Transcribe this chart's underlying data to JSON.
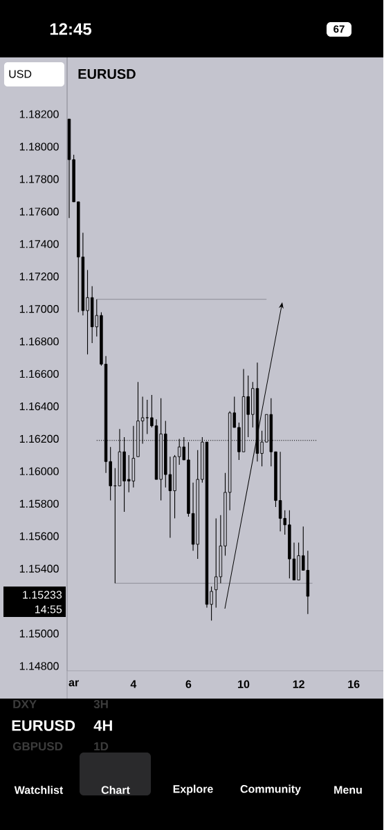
{
  "chart_data": {
    "type": "candlestick",
    "title": "EURUSD",
    "categories": [
      null,
      "ar",
      null,
      null,
      null,
      null,
      null,
      null,
      null,
      null,
      null,
      null,
      null,
      null,
      "4",
      null,
      null,
      null,
      null,
      null,
      null,
      null,
      null,
      null,
      null,
      null,
      "6",
      null,
      null,
      null,
      null,
      null,
      null,
      null,
      null,
      null,
      null,
      null,
      "10",
      null,
      null,
      null,
      null,
      null,
      null,
      null,
      null,
      null,
      null,
      null,
      "12",
      null,
      null,
      null,
      null,
      null,
      null,
      null,
      null,
      null,
      null,
      null,
      "16"
    ],
    "ohlc": [
      [
        1.1817,
        1.1817,
        1.1756,
        1.1792
      ],
      [
        1.1792,
        1.1795,
        1.1766,
        1.1766
      ],
      [
        1.1766,
        1.1766,
        1.1698,
        1.1732
      ],
      [
        1.1732,
        1.1747,
        1.1696,
        1.1699
      ],
      [
        1.1699,
        1.1724,
        1.1672,
        1.1707
      ],
      [
        1.1707,
        1.1714,
        1.1679,
        1.1689
      ],
      [
        1.1689,
        1.1706,
        1.1683,
        1.1696
      ],
      [
        1.1696,
        1.1698,
        1.1665,
        1.1666
      ],
      [
        1.1666,
        1.1671,
        1.1599,
        1.1606
      ],
      [
        1.1606,
        1.1615,
        1.1582,
        1.1591
      ],
      [
        1.1591,
        1.1602,
        1.1531,
        1.1591
      ],
      [
        1.1591,
        1.1626,
        1.1591,
        1.1612
      ],
      [
        1.1612,
        1.1621,
        1.1575,
        1.1594
      ],
      [
        1.1595,
        1.161,
        1.1587,
        1.1594
      ],
      [
        1.1594,
        1.1628,
        1.159,
        1.1608
      ],
      [
        1.1609,
        1.1655,
        1.1609,
        1.1631
      ],
      [
        1.1631,
        1.1646,
        1.1617,
        1.1633
      ],
      [
        1.1633,
        1.1644,
        1.1623,
        1.1633
      ],
      [
        1.1633,
        1.1647,
        1.1627,
        1.1628
      ],
      [
        1.1628,
        1.1632,
        1.1595,
        1.1595
      ],
      [
        1.1595,
        1.1645,
        1.1582,
        1.1623
      ],
      [
        1.1623,
        1.1631,
        1.159,
        1.1598
      ],
      [
        1.1598,
        1.1609,
        1.1559,
        1.1588
      ],
      [
        1.1588,
        1.161,
        1.1571,
        1.1609
      ],
      [
        1.1609,
        1.162,
        1.1604,
        1.1615
      ],
      [
        1.1615,
        1.1621,
        1.1607,
        1.1607
      ],
      [
        1.1607,
        1.1618,
        1.1572,
        1.1574
      ],
      [
        1.1574,
        1.1593,
        1.1551,
        1.1555
      ],
      [
        1.1555,
        1.1613,
        1.1546,
        1.1595
      ],
      [
        1.1595,
        1.1621,
        1.1593,
        1.1618
      ],
      [
        1.1618,
        1.1618,
        1.1516,
        1.1518
      ],
      [
        1.1518,
        1.1529,
        1.1508,
        1.1526
      ],
      [
        1.1527,
        1.1571,
        1.1516,
        1.1535
      ],
      [
        1.1535,
        1.1573,
        1.1531,
        1.1554
      ],
      [
        1.1554,
        1.1599,
        1.1548,
        1.1587
      ],
      [
        1.1587,
        1.1637,
        1.1576,
        1.1636
      ],
      [
        1.1636,
        1.1646,
        1.1627,
        1.1627
      ],
      [
        1.1627,
        1.163,
        1.1607,
        1.1612
      ],
      [
        1.1612,
        1.1663,
        1.1612,
        1.1646
      ],
      [
        1.1646,
        1.1659,
        1.1621,
        1.1635
      ],
      [
        1.1635,
        1.1655,
        1.1627,
        1.1651
      ],
      [
        1.1651,
        1.1667,
        1.1606,
        1.1611
      ],
      [
        1.1611,
        1.1625,
        1.1603,
        1.1618
      ],
      [
        1.1618,
        1.1635,
        1.1618,
        1.1635
      ],
      [
        1.1635,
        1.1645,
        1.1603,
        1.1612
      ],
      [
        1.1612,
        1.1612,
        1.1578,
        1.1582
      ],
      [
        1.1582,
        1.1612,
        1.1563,
        1.1571
      ],
      [
        1.1571,
        1.1576,
        1.1561,
        1.1567
      ],
      [
        1.1567,
        1.1576,
        1.1534,
        1.1546
      ],
      [
        1.1546,
        1.1556,
        1.1533,
        1.1533
      ],
      [
        1.1533,
        1.1556,
        1.1533,
        1.1548
      ],
      [
        1.1548,
        1.1566,
        1.1539,
        1.1539
      ],
      [
        1.1539,
        1.1551,
        1.1512,
        1.1523
      ],
      null,
      null,
      null,
      null,
      null,
      null,
      null,
      null,
      null,
      null
    ],
    "series": [
      {
        "type": "line",
        "values": [
          null,
          null,
          null,
          null,
          null,
          null,
          1.1706,
          1.1706,
          1.1706,
          1.1706,
          1.1706,
          1.1706,
          1.1706,
          1.1706,
          1.1706,
          1.1706,
          1.1706,
          1.1706,
          1.1706,
          1.1706,
          1.1706,
          1.1706,
          1.1706,
          1.1706,
          1.1706,
          1.1706,
          1.1706,
          1.1706,
          1.1706,
          1.1706,
          1.1706,
          1.1706,
          1.1706,
          1.1706,
          1.1706,
          1.1706,
          1.1706,
          1.1706,
          1.1706,
          1.1706,
          1.1706,
          1.1706,
          1.1706,
          1.1706,
          null,
          null,
          null,
          null,
          null,
          null,
          null,
          null,
          null,
          null,
          null,
          null,
          null,
          null,
          null,
          null,
          null,
          null,
          null
        ],
        "color": "#8c8c96",
        "line_style": "solid"
      },
      {
        "type": "line",
        "values": [
          null,
          null,
          null,
          null,
          null,
          null,
          1.1619,
          1.1619,
          1.1619,
          1.1619,
          1.1619,
          1.1619,
          1.1619,
          1.1619,
          1.1619,
          1.1619,
          1.1619,
          1.1619,
          1.1619,
          1.1619,
          1.1619,
          1.1619,
          1.1619,
          1.1619,
          1.1619,
          1.1619,
          1.1619,
          1.1619,
          1.1619,
          1.1619,
          1.1619,
          1.1619,
          1.1619,
          1.1619,
          1.1619,
          1.1619,
          1.1619,
          1.1619,
          1.1619,
          1.1619,
          1.1619,
          1.1619,
          1.1619,
          1.1619,
          1.1619,
          1.1619,
          1.1619,
          1.1619,
          1.1619,
          1.1619,
          1.1619,
          1.1619,
          1.1619,
          1.1619,
          1.1619,
          null,
          null,
          null,
          null,
          null,
          null,
          null,
          null
        ],
        "color": "#000000",
        "line_style": "dotted"
      },
      {
        "type": "line",
        "values": [
          null,
          null,
          null,
          null,
          null,
          null,
          null,
          null,
          null,
          null,
          1.1531,
          1.1531,
          1.1531,
          1.1531,
          1.1531,
          1.1531,
          1.1531,
          1.1531,
          1.1531,
          1.1531,
          1.1531,
          1.1531,
          1.1531,
          1.1531,
          1.1531,
          1.1531,
          1.1531,
          1.1531,
          1.1531,
          1.1531,
          1.1531,
          1.1531,
          1.1531,
          1.1531,
          1.1531,
          1.1531,
          1.1531,
          1.1531,
          1.1531,
          1.1531,
          1.1531,
          1.1531,
          1.1531,
          1.1531,
          1.1531,
          1.1531,
          1.1531,
          1.1531,
          1.1531,
          1.1531,
          1.1531,
          1.1531,
          1.1531,
          1.1531,
          null,
          null,
          null,
          null,
          null,
          null,
          null,
          null,
          null
        ],
        "color": "#8c8c96",
        "line_style": "solid"
      }
    ],
    "ylim": [
      1.1477,
      1.1855
    ],
    "yticks": [
      {
        "value": 1.148,
        "label": "1.14800"
      },
      {
        "value": 1.15,
        "label": "1.15000"
      },
      {
        "value": 1.154,
        "label": "1.15400"
      },
      {
        "value": 1.156,
        "label": "1.15600"
      },
      {
        "value": 1.158,
        "label": "1.15800"
      },
      {
        "value": 1.16,
        "label": "1.16000"
      },
      {
        "value": 1.162,
        "label": "1.16200"
      },
      {
        "value": 1.164,
        "label": "1.16400"
      },
      {
        "value": 1.166,
        "label": "1.16600"
      },
      {
        "value": 1.168,
        "label": "1.16800"
      },
      {
        "value": 1.17,
        "label": "1.17000"
      },
      {
        "value": 1.172,
        "label": "1.17200"
      },
      {
        "value": 1.174,
        "label": "1.17400"
      },
      {
        "value": 1.176,
        "label": "1.17600"
      },
      {
        "value": 1.178,
        "label": "1.17800"
      },
      {
        "value": 1.18,
        "label": "1.18000"
      },
      {
        "value": 1.182,
        "label": "1.18200"
      }
    ],
    "annotations": [
      "1.15233",
      "14:55",
      "12:45",
      "67",
      "USD",
      "EURUSD",
      "4H",
      "DXY",
      "3H",
      "GBPUSD",
      "1D",
      "Watchlist",
      "Chart",
      "Explore",
      "Community",
      "Menu"
    ]
  }
}
